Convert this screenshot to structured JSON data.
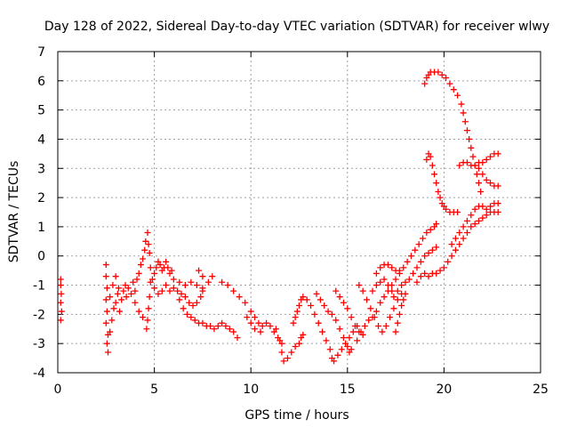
{
  "chart_data": {
    "type": "scatter",
    "title": "Day 128 of 2022, Sidereal Day-to-day VTEC variation (SDTVAR) for receiver wlwy",
    "xlabel": "GPS time / hours",
    "ylabel": "SDTVAR / TECUs",
    "xlim": [
      0,
      25
    ],
    "ylim": [
      -4,
      7
    ],
    "xticks": [
      "0",
      "5",
      "10",
      "15",
      "20",
      "25"
    ],
    "yticks": [
      "-4",
      "-3",
      "-2",
      "-1",
      "0",
      "1",
      "2",
      "3",
      "4",
      "5",
      "6",
      "7"
    ],
    "grid": true,
    "marker": "+",
    "color": "#ff0000",
    "series": [
      {
        "points": [
          [
            0.15,
            -0.8
          ],
          [
            0.15,
            -1.0
          ],
          [
            0.18,
            -1.3
          ],
          [
            0.15,
            -1.6
          ],
          [
            0.2,
            -1.9
          ],
          [
            0.15,
            -2.2
          ],
          [
            2.5,
            -0.3
          ],
          [
            2.5,
            -0.7
          ],
          [
            2.55,
            -1.1
          ],
          [
            2.5,
            -1.5
          ],
          [
            2.55,
            -1.9
          ],
          [
            2.5,
            -2.3
          ],
          [
            2.6,
            -2.7
          ],
          [
            2.55,
            -3.0
          ],
          [
            2.6,
            -3.3
          ],
          [
            2.7,
            -2.6
          ],
          [
            2.8,
            -2.2
          ],
          [
            2.9,
            -1.8
          ],
          [
            3.0,
            -1.6
          ],
          [
            3.1,
            -1.3
          ],
          [
            3.2,
            -1.9
          ],
          [
            3.3,
            -1.5
          ],
          [
            3.4,
            -1.2
          ],
          [
            3.5,
            -1.0
          ],
          [
            3.55,
            -1.4
          ],
          [
            3.65,
            -1.1
          ],
          [
            2.7,
            -1.4
          ],
          [
            2.85,
            -1.0
          ],
          [
            3.0,
            -0.7
          ],
          [
            3.15,
            -1.1
          ],
          [
            3.8,
            -1.3
          ],
          [
            3.9,
            -0.9
          ],
          [
            4.0,
            -1.2
          ],
          [
            4.1,
            -0.8
          ],
          [
            4.2,
            -0.6
          ],
          [
            4.3,
            -0.3
          ],
          [
            4.4,
            -0.1
          ],
          [
            4.5,
            0.2
          ],
          [
            4.55,
            0.5
          ],
          [
            4.65,
            0.8
          ],
          [
            4.7,
            0.4
          ],
          [
            4.75,
            0.1
          ],
          [
            4.8,
            -0.4
          ],
          [
            4.8,
            -0.9
          ],
          [
            4.75,
            -1.4
          ],
          [
            4.7,
            -1.8
          ],
          [
            4.65,
            -2.2
          ],
          [
            4.6,
            -2.5
          ],
          [
            4.0,
            -1.6
          ],
          [
            4.2,
            -1.9
          ],
          [
            4.4,
            -2.1
          ],
          [
            4.9,
            -0.8
          ],
          [
            5.0,
            -0.6
          ],
          [
            5.1,
            -0.4
          ],
          [
            5.2,
            -0.2
          ],
          [
            5.3,
            -0.3
          ],
          [
            5.4,
            -0.5
          ],
          [
            5.5,
            -0.4
          ],
          [
            5.6,
            -0.2
          ],
          [
            5.7,
            -0.4
          ],
          [
            5.8,
            -0.6
          ],
          [
            5.9,
            -0.5
          ],
          [
            5.0,
            -1.1
          ],
          [
            5.2,
            -1.3
          ],
          [
            5.4,
            -1.2
          ],
          [
            5.6,
            -1.0
          ],
          [
            5.8,
            -1.2
          ],
          [
            6.0,
            -1.1
          ],
          [
            6.2,
            -1.2
          ],
          [
            6.4,
            -1.3
          ],
          [
            6.6,
            -1.4
          ],
          [
            6.8,
            -1.6
          ],
          [
            7.0,
            -1.7
          ],
          [
            7.2,
            -1.6
          ],
          [
            7.4,
            -1.4
          ],
          [
            7.5,
            -1.2
          ],
          [
            6.0,
            -0.8
          ],
          [
            6.3,
            -0.9
          ],
          [
            6.6,
            -1.0
          ],
          [
            6.9,
            -0.9
          ],
          [
            7.2,
            -1.0
          ],
          [
            7.5,
            -1.1
          ],
          [
            7.8,
            -0.9
          ],
          [
            8.0,
            -0.7
          ],
          [
            7.3,
            -0.5
          ],
          [
            7.5,
            -0.7
          ],
          [
            6.3,
            -1.5
          ],
          [
            6.5,
            -1.8
          ],
          [
            6.7,
            -2.0
          ],
          [
            6.9,
            -2.1
          ],
          [
            7.1,
            -2.2
          ],
          [
            7.3,
            -2.3
          ],
          [
            7.5,
            -2.3
          ],
          [
            7.7,
            -2.4
          ],
          [
            7.9,
            -2.4
          ],
          [
            8.1,
            -2.5
          ],
          [
            8.3,
            -2.4
          ],
          [
            8.5,
            -2.3
          ],
          [
            8.7,
            -2.4
          ],
          [
            8.9,
            -2.5
          ],
          [
            9.1,
            -2.6
          ],
          [
            9.3,
            -2.8
          ],
          [
            8.5,
            -0.9
          ],
          [
            8.8,
            -1.0
          ],
          [
            9.1,
            -1.2
          ],
          [
            9.4,
            -1.4
          ],
          [
            9.7,
            -1.6
          ],
          [
            10.0,
            -1.9
          ],
          [
            10.2,
            -2.1
          ],
          [
            10.4,
            -2.3
          ],
          [
            10.6,
            -2.4
          ],
          [
            10.8,
            -2.3
          ],
          [
            11.0,
            -2.4
          ],
          [
            11.2,
            -2.6
          ],
          [
            11.4,
            -2.8
          ],
          [
            11.6,
            -3.0
          ],
          [
            9.8,
            -2.1
          ],
          [
            10.0,
            -2.3
          ],
          [
            10.2,
            -2.5
          ],
          [
            10.5,
            -2.6
          ],
          [
            11.3,
            -2.5
          ],
          [
            11.5,
            -2.9
          ],
          [
            11.6,
            -3.3
          ],
          [
            11.7,
            -3.6
          ],
          [
            11.9,
            -3.5
          ],
          [
            12.1,
            -3.3
          ],
          [
            12.3,
            -3.1
          ],
          [
            12.5,
            -3.0
          ],
          [
            12.6,
            -2.8
          ],
          [
            12.7,
            -2.7
          ],
          [
            12.2,
            -2.3
          ],
          [
            12.3,
            -2.1
          ],
          [
            12.4,
            -1.9
          ],
          [
            12.5,
            -1.7
          ],
          [
            12.6,
            -1.5
          ],
          [
            12.7,
            -1.4
          ],
          [
            12.9,
            -1.5
          ],
          [
            13.1,
            -1.7
          ],
          [
            13.3,
            -2.0
          ],
          [
            13.5,
            -2.3
          ],
          [
            13.7,
            -2.6
          ],
          [
            13.9,
            -2.9
          ],
          [
            14.1,
            -3.2
          ],
          [
            14.2,
            -3.5
          ],
          [
            14.3,
            -3.6
          ],
          [
            14.5,
            -3.4
          ],
          [
            14.7,
            -3.2
          ],
          [
            14.9,
            -3.0
          ],
          [
            15.1,
            -2.8
          ],
          [
            15.3,
            -2.6
          ],
          [
            15.5,
            -2.4
          ],
          [
            13.4,
            -1.3
          ],
          [
            13.6,
            -1.5
          ],
          [
            13.8,
            -1.7
          ],
          [
            14.0,
            -1.9
          ],
          [
            14.2,
            -2.0
          ],
          [
            14.4,
            -2.2
          ],
          [
            14.6,
            -2.5
          ],
          [
            14.8,
            -2.8
          ],
          [
            15.0,
            -3.1
          ],
          [
            15.1,
            -3.3
          ],
          [
            15.2,
            -3.2
          ],
          [
            14.4,
            -1.2
          ],
          [
            14.6,
            -1.4
          ],
          [
            14.8,
            -1.6
          ],
          [
            15.0,
            -1.8
          ],
          [
            15.2,
            -2.1
          ],
          [
            15.4,
            -2.4
          ],
          [
            15.6,
            -2.6
          ],
          [
            15.8,
            -2.7
          ],
          [
            15.5,
            -2.9
          ],
          [
            15.7,
            -2.6
          ],
          [
            15.9,
            -2.4
          ],
          [
            16.1,
            -2.2
          ],
          [
            16.3,
            -2.1
          ],
          [
            16.5,
            -1.9
          ],
          [
            16.7,
            -1.6
          ],
          [
            16.9,
            -1.4
          ],
          [
            17.1,
            -1.2
          ],
          [
            17.3,
            -1.0
          ],
          [
            17.5,
            -0.8
          ],
          [
            17.7,
            -0.6
          ],
          [
            17.9,
            -0.4
          ],
          [
            18.1,
            -0.2
          ],
          [
            18.3,
            0.0
          ],
          [
            18.5,
            0.2
          ],
          [
            18.7,
            0.4
          ],
          [
            18.9,
            0.6
          ],
          [
            19.1,
            0.8
          ],
          [
            19.3,
            0.9
          ],
          [
            19.5,
            1.0
          ],
          [
            19.6,
            1.1
          ],
          [
            15.6,
            -1.0
          ],
          [
            15.8,
            -1.2
          ],
          [
            16.0,
            -1.5
          ],
          [
            16.2,
            -1.8
          ],
          [
            16.4,
            -2.1
          ],
          [
            16.6,
            -2.4
          ],
          [
            16.8,
            -2.6
          ],
          [
            17.0,
            -2.4
          ],
          [
            17.2,
            -2.1
          ],
          [
            17.4,
            -1.8
          ],
          [
            17.6,
            -1.5
          ],
          [
            17.8,
            -1.3
          ],
          [
            16.3,
            -1.2
          ],
          [
            16.5,
            -1.0
          ],
          [
            16.7,
            -0.9
          ],
          [
            16.9,
            -0.8
          ],
          [
            17.1,
            -1.0
          ],
          [
            17.3,
            -1.2
          ],
          [
            16.5,
            -0.6
          ],
          [
            16.7,
            -0.4
          ],
          [
            16.9,
            -0.3
          ],
          [
            17.1,
            -0.3
          ],
          [
            17.3,
            -0.4
          ],
          [
            17.5,
            -0.5
          ],
          [
            17.7,
            -0.5
          ],
          [
            17.4,
            -1.4
          ],
          [
            17.6,
            -1.2
          ],
          [
            17.8,
            -1.0
          ],
          [
            18.0,
            -0.9
          ],
          [
            18.2,
            -0.8
          ],
          [
            18.4,
            -0.6
          ],
          [
            18.6,
            -0.4
          ],
          [
            18.8,
            -0.2
          ],
          [
            19.0,
            0.0
          ],
          [
            19.2,
            0.1
          ],
          [
            19.4,
            0.2
          ],
          [
            19.6,
            0.3
          ],
          [
            17.5,
            -2.6
          ],
          [
            17.6,
            -2.3
          ],
          [
            17.7,
            -2.0
          ],
          [
            17.8,
            -1.7
          ],
          [
            17.9,
            -1.5
          ],
          [
            18.0,
            -1.3
          ],
          [
            18.6,
            -0.9
          ],
          [
            18.8,
            -0.7
          ],
          [
            19.0,
            -0.6
          ],
          [
            19.2,
            -0.7
          ],
          [
            19.4,
            -0.6
          ],
          [
            19.6,
            -0.6
          ],
          [
            19.8,
            -0.5
          ],
          [
            20.0,
            -0.4
          ],
          [
            20.2,
            -0.2
          ],
          [
            20.4,
            0.0
          ],
          [
            20.6,
            0.2
          ],
          [
            20.8,
            0.4
          ],
          [
            21.0,
            0.6
          ],
          [
            21.2,
            0.8
          ],
          [
            21.4,
            1.0
          ],
          [
            21.6,
            1.1
          ],
          [
            21.8,
            1.2
          ],
          [
            22.0,
            1.3
          ],
          [
            22.2,
            1.4
          ],
          [
            22.4,
            1.5
          ],
          [
            22.6,
            1.5
          ],
          [
            22.8,
            1.5
          ],
          [
            20.4,
            0.4
          ],
          [
            20.6,
            0.6
          ],
          [
            20.8,
            0.8
          ],
          [
            21.0,
            1.0
          ],
          [
            21.2,
            1.2
          ],
          [
            21.4,
            1.4
          ],
          [
            21.6,
            1.6
          ],
          [
            21.8,
            1.7
          ],
          [
            22.0,
            1.7
          ],
          [
            22.2,
            1.6
          ],
          [
            22.4,
            1.7
          ],
          [
            22.6,
            1.8
          ],
          [
            22.8,
            1.8
          ],
          [
            19.0,
            5.9
          ],
          [
            19.1,
            6.1
          ],
          [
            19.2,
            6.2
          ],
          [
            19.3,
            6.3
          ],
          [
            19.5,
            6.3
          ],
          [
            19.7,
            6.3
          ],
          [
            19.9,
            6.2
          ],
          [
            20.1,
            6.1
          ],
          [
            20.3,
            5.9
          ],
          [
            20.5,
            5.7
          ],
          [
            20.7,
            5.5
          ],
          [
            20.9,
            5.2
          ],
          [
            21.0,
            4.9
          ],
          [
            21.1,
            4.6
          ],
          [
            21.2,
            4.3
          ],
          [
            21.3,
            4.0
          ],
          [
            21.4,
            3.7
          ],
          [
            21.5,
            3.4
          ],
          [
            21.6,
            3.1
          ],
          [
            21.7,
            2.8
          ],
          [
            21.8,
            2.5
          ],
          [
            21.9,
            2.2
          ],
          [
            19.1,
            3.3
          ],
          [
            19.2,
            3.5
          ],
          [
            19.3,
            3.4
          ],
          [
            19.4,
            3.1
          ],
          [
            19.5,
            2.8
          ],
          [
            19.6,
            2.5
          ],
          [
            19.7,
            2.2
          ],
          [
            19.8,
            2.0
          ],
          [
            19.9,
            1.8
          ],
          [
            20.0,
            1.7
          ],
          [
            20.1,
            1.6
          ],
          [
            20.3,
            1.5
          ],
          [
            20.5,
            1.5
          ],
          [
            20.7,
            1.5
          ],
          [
            20.8,
            3.1
          ],
          [
            21.0,
            3.2
          ],
          [
            21.2,
            3.2
          ],
          [
            21.4,
            3.1
          ],
          [
            21.6,
            3.1
          ],
          [
            21.8,
            3.2
          ],
          [
            22.0,
            3.2
          ],
          [
            22.2,
            3.3
          ],
          [
            22.4,
            3.4
          ],
          [
            22.6,
            3.5
          ],
          [
            22.8,
            3.5
          ],
          [
            21.8,
            3.0
          ],
          [
            22.0,
            2.8
          ],
          [
            22.2,
            2.6
          ],
          [
            22.4,
            2.5
          ],
          [
            22.6,
            2.4
          ],
          [
            22.8,
            2.4
          ]
        ]
      }
    ]
  }
}
